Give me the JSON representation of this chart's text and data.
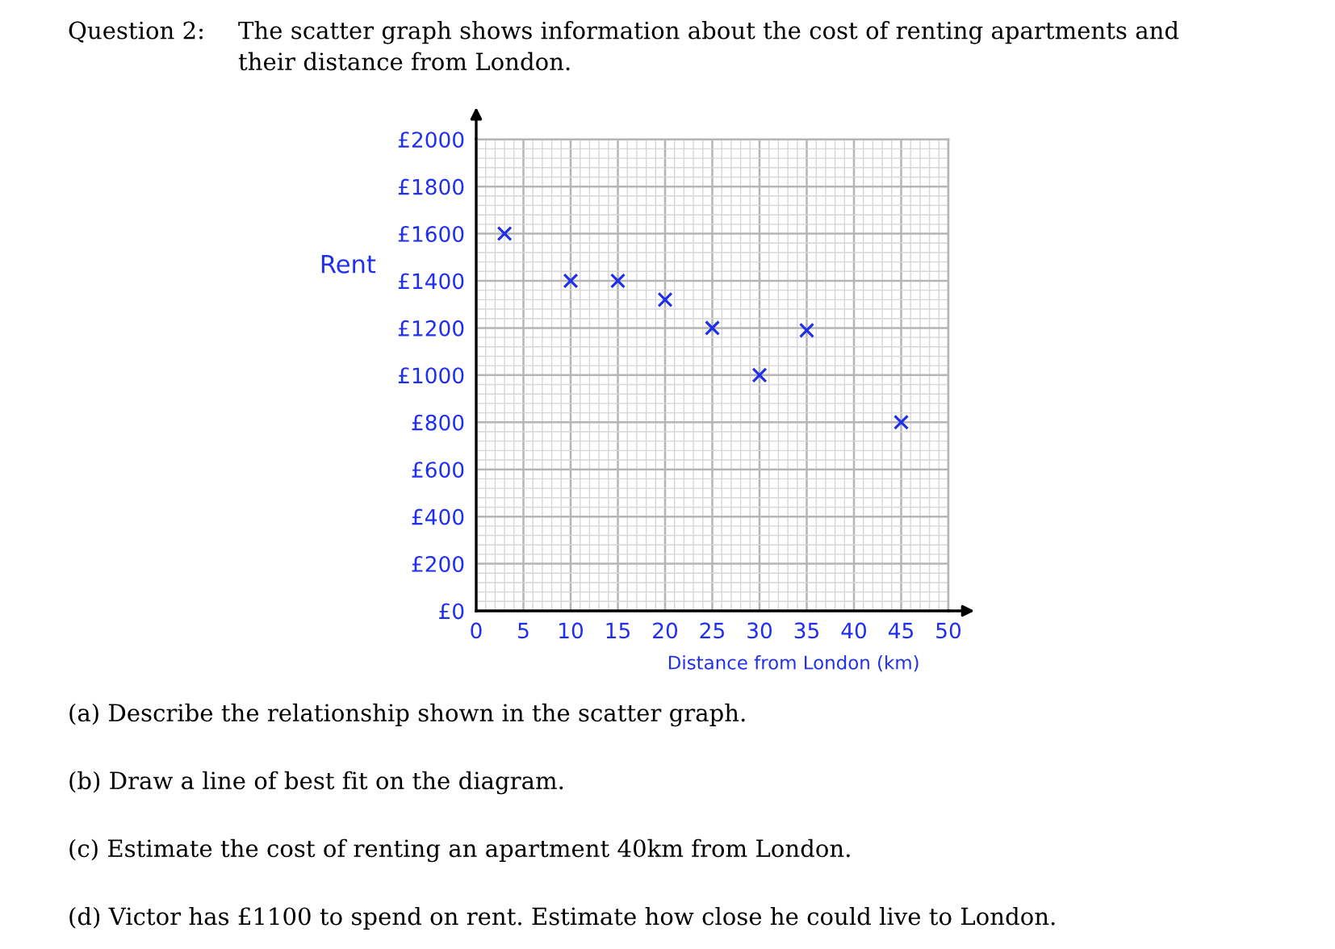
{
  "chart_data": {
    "type": "scatter",
    "title": "Question 2:",
    "subtitle": "The scatter graph shows information about the cost of renting apartments and their distance from London.",
    "xlabel": "Distance from London (km)",
    "ylabel": "Rent",
    "x": [
      3,
      10,
      15,
      20,
      25,
      30,
      35,
      45
    ],
    "values": [
      1600,
      1400,
      1400,
      1320,
      1200,
      1000,
      1190,
      800
    ],
    "color": "#1f2fe8",
    "marker": "cross",
    "xlim": [
      0,
      50
    ],
    "ylim": [
      0,
      2000
    ],
    "xticks": [
      0,
      {
        "value": 1,
        "label": null
      },
      {
        "value": 2,
        "label": null
      },
      {
        "value": 3,
        "label": null
      },
      {
        "value": 4,
        "label": null
      },
      5,
      {
        "value": 6,
        "label": null
      },
      {
        "value": 7,
        "label": null
      },
      {
        "value": 8,
        "label": null
      },
      {
        "value": 9,
        "label": null
      },
      10,
      {
        "value": 11,
        "label": null
      },
      {
        "value": 12,
        "label": null
      },
      {
        "value": 13,
        "label": null
      },
      {
        "value": 14,
        "label": null
      },
      15,
      {
        "value": 16,
        "label": null
      },
      {
        "value": 17,
        "label": null
      },
      {
        "value": 18,
        "label": null
      },
      {
        "value": 19,
        "label": null
      },
      20,
      {
        "value": 21,
        "label": null
      },
      {
        "value": 22,
        "label": null
      },
      {
        "value": 23,
        "label": null
      },
      {
        "value": 24,
        "label": null
      },
      25,
      {
        "value": 26,
        "label": null
      },
      {
        "value": 27,
        "label": null
      },
      {
        "value": 28,
        "label": null
      },
      {
        "value": 29,
        "label": null
      },
      30,
      {
        "value": 31,
        "label": null
      },
      {
        "value": 32,
        "label": null
      },
      {
        "value": 33,
        "label": null
      },
      {
        "value": 34,
        "label": null
      },
      35,
      {
        "value": 36,
        "label": null
      },
      {
        "value": 37,
        "label": null
      },
      {
        "value": 38,
        "label": null
      },
      {
        "value": 39,
        "label": null
      },
      40,
      {
        "value": 41,
        "label": null
      },
      {
        "value": 42,
        "label": null
      },
      {
        "value": 43,
        "label": null
      },
      {
        "value": 44,
        "label": null
      },
      45,
      {
        "value": 46,
        "label": null
      },
      {
        "value": 47,
        "label": null
      },
      {
        "value": 48,
        "label": null
      },
      {
        "value": 49,
        "label": null
      },
      50
    ],
    "yticks": [
      {
        "value": 0,
        "label": "£0"
      },
      {
        "value": 40,
        "label": null
      },
      {
        "value": 80,
        "label": null
      },
      {
        "value": 120,
        "label": null
      },
      {
        "value": 160,
        "label": null
      },
      {
        "value": 200,
        "label": "£200"
      },
      {
        "value": 240,
        "label": null
      },
      {
        "value": 280,
        "label": null
      },
      {
        "value": 320,
        "label": null
      },
      {
        "value": 360,
        "label": null
      },
      {
        "value": 400,
        "label": "£400"
      },
      {
        "value": 440,
        "label": null
      },
      {
        "value": 480,
        "label": null
      },
      {
        "value": 520,
        "label": null
      },
      {
        "value": 560,
        "label": null
      },
      {
        "value": 600,
        "label": "£600"
      },
      {
        "value": 640,
        "label": null
      },
      {
        "value": 680,
        "label": null
      },
      {
        "value": 720,
        "label": null
      },
      {
        "value": 760,
        "label": null
      },
      {
        "value": 800,
        "label": "£800"
      },
      {
        "value": 840,
        "label": null
      },
      {
        "value": 880,
        "label": null
      },
      {
        "value": 920,
        "label": null
      },
      {
        "value": 960,
        "label": null
      },
      {
        "value": 1000,
        "label": "£1000"
      },
      {
        "value": 1040,
        "label": null
      },
      {
        "value": 1080,
        "label": null
      },
      {
        "value": 1120,
        "label": null
      },
      {
        "value": 1160,
        "label": null
      },
      {
        "value": 1200,
        "label": "£1200"
      },
      {
        "value": 1240,
        "label": null
      },
      {
        "value": 1280,
        "label": null
      },
      {
        "value": 1320,
        "label": null
      },
      {
        "value": 1360,
        "label": null
      },
      {
        "value": 1400,
        "label": "£1400"
      },
      {
        "value": 1440,
        "label": null
      },
      {
        "value": 1480,
        "label": null
      },
      {
        "value": 1520,
        "label": null
      },
      {
        "value": 1560,
        "label": null
      },
      {
        "value": 1600,
        "label": "£1600"
      },
      {
        "value": 1640,
        "label": null
      },
      {
        "value": 1680,
        "label": null
      },
      {
        "value": 1720,
        "label": null
      },
      {
        "value": 1760,
        "label": null
      },
      {
        "value": 1800,
        "label": "£1800"
      },
      {
        "value": 1840,
        "label": null
      },
      {
        "value": 1880,
        "label": null
      },
      {
        "value": 1920,
        "label": null
      },
      {
        "value": 1960,
        "label": null
      },
      {
        "value": 2000,
        "label": "£2000"
      }
    ],
    "grid": true,
    "annotations": [
      "(a) Describe the relationship shown in the scatter graph.",
      "(b) Draw a line of best fit on the diagram.",
      "(c) Estimate the cost of renting an apartment 40km from London.",
      "(d) Victor has £1100 to spend on rent. Estimate how close he could live to London."
    ]
  }
}
